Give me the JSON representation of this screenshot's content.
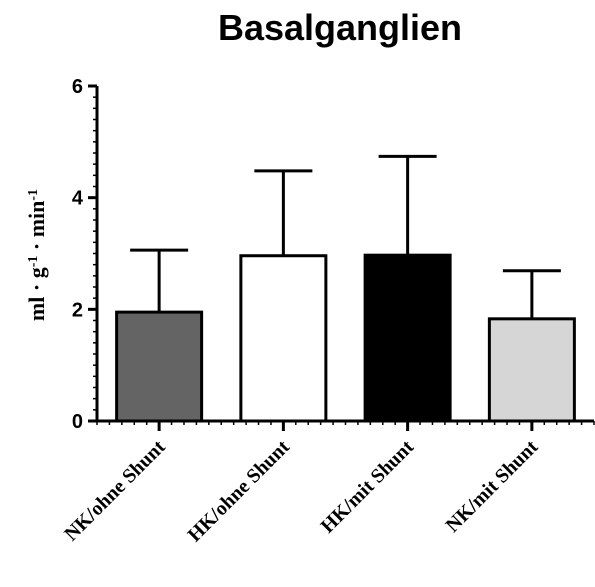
{
  "chart_data": {
    "type": "bar",
    "title": "Basalganglien",
    "ylabel": {
      "parts": [
        {
          "text": "ml · g",
          "sup": false
        },
        {
          "text": "-1",
          "sup": true
        },
        {
          "text": " · min",
          "sup": false
        },
        {
          "text": "-1",
          "sup": true
        }
      ]
    },
    "xlabel": "",
    "ylim": [
      0,
      6
    ],
    "yticks": [
      0,
      2,
      4,
      6
    ],
    "grid": false,
    "categories": [
      "NK/ohne Shunt",
      "HK/ohne Shunt",
      "HK/mit Shunt",
      "NK/mit Shunt"
    ],
    "values": [
      1.95,
      2.96,
      2.97,
      1.83
    ],
    "error_upper": [
      3.06,
      4.48,
      4.74,
      2.69
    ],
    "bar_colors": [
      "#646464",
      "#ffffff",
      "#000000",
      "#d6d6d6"
    ]
  }
}
